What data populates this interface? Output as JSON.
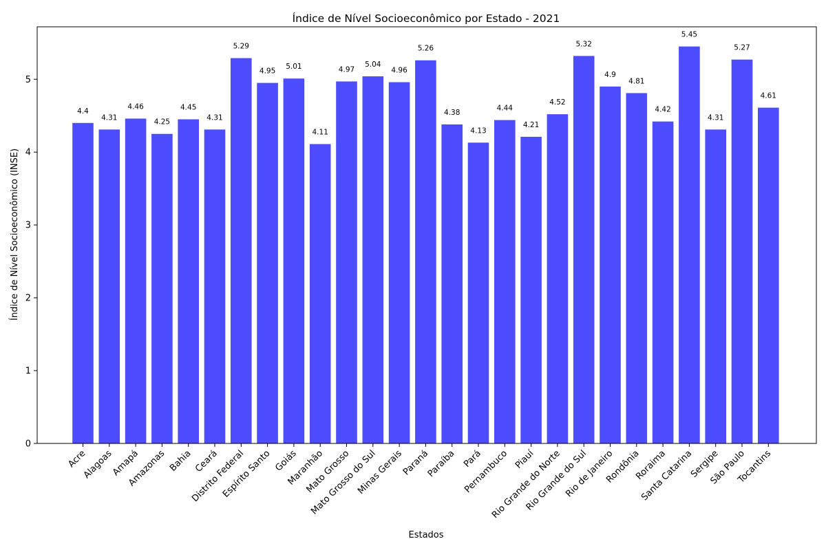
{
  "chart_data": {
    "type": "bar",
    "title": "Índice de Nível Socioeconômico por Estado - 2021",
    "xlabel": "Estados",
    "ylabel": "Índice de Nível Socioeconômico (INSE)",
    "categories": [
      "Acre",
      "Alagoas",
      "Amapá",
      "Amazonas",
      "Bahia",
      "Ceará",
      "Distrito Federal",
      "Espírito Santo",
      "Goiás",
      "Maranhão",
      "Mato Grosso",
      "Mato Grosso do Sul",
      "Minas Gerais",
      "Paraná",
      "Paraíba",
      "Pará",
      "Pernambuco",
      "Piauí",
      "Rio Grande do Norte",
      "Rio Grande do Sul",
      "Rio de Janeiro",
      "Rondônia",
      "Roraima",
      "Santa Catarina",
      "Sergipe",
      "São Paulo",
      "Tocantins"
    ],
    "values": [
      4.4,
      4.31,
      4.46,
      4.25,
      4.45,
      4.31,
      5.29,
      4.95,
      5.01,
      4.11,
      4.97,
      5.04,
      4.96,
      5.26,
      4.38,
      4.13,
      4.44,
      4.21,
      4.52,
      5.32,
      4.9,
      4.81,
      4.42,
      5.45,
      4.31,
      5.27,
      4.61
    ],
    "value_labels": [
      "4.4",
      "4.31",
      "4.46",
      "4.25",
      "4.45",
      "4.31",
      "5.29",
      "4.95",
      "5.01",
      "4.11",
      "4.97",
      "5.04",
      "4.96",
      "5.26",
      "4.38",
      "4.13",
      "4.44",
      "4.21",
      "4.52",
      "5.32",
      "4.9",
      "4.81",
      "4.42",
      "5.45",
      "4.31",
      "5.27",
      "4.61"
    ],
    "yticks": [
      "0",
      "1",
      "2",
      "3",
      "4",
      "5"
    ],
    "ylim": [
      0,
      5.72
    ],
    "bar_color": "#4d4dff",
    "grid": false,
    "legend": false
  }
}
